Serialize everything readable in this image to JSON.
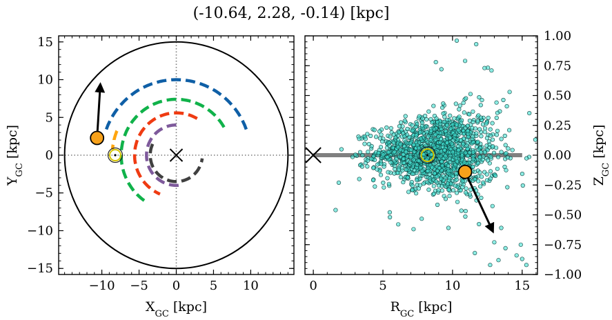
{
  "figure": {
    "title": "(-10.64, 2.28, -0.14) [kpc]"
  },
  "chart_data": [
    {
      "type": "line",
      "panel": "left",
      "xlabel": "X",
      "xlabel_sub": "GC",
      "xlabel_unit": " [kpc]",
      "ylabel": "Y",
      "ylabel_sub": "GC",
      "ylabel_unit": " [kpc]",
      "xlim": [
        -15.8,
        15.8
      ],
      "ylim": [
        -15.8,
        15.8
      ],
      "xticks": [
        -10,
        -5,
        0,
        5,
        10
      ],
      "xtick_labels": [
        "−10",
        "−5",
        "0",
        "5",
        "10"
      ],
      "yticks": [
        -15,
        -10,
        -5,
        0,
        5,
        10,
        15
      ],
      "ytick_labels": [
        "−15",
        "−10",
        "−5",
        "0",
        "5",
        "10",
        "15"
      ],
      "boundary_circle_radius": 15,
      "galactic_center": [
        0,
        0
      ],
      "sun_position": [
        -8.2,
        0
      ],
      "object_position": [
        -10.64,
        2.28
      ],
      "object_velocity_arrow_tip": [
        -10.2,
        9.4
      ],
      "spiral_arms": [
        {
          "color": "#0f5fa6",
          "radius": 10.0,
          "theta_start_deg": 20,
          "theta_end_deg": 160
        },
        {
          "color": "#10b24a",
          "radius": 7.4,
          "theta_start_deg": 30,
          "theta_end_deg": 238
        },
        {
          "color": "#ffa50f",
          "radius": 8.6,
          "theta_start_deg": 158,
          "theta_end_deg": 175
        },
        {
          "color": "#ef3b12",
          "radius": 5.6,
          "theta_start_deg": 60,
          "theta_end_deg": 247
        },
        {
          "color": "#7e5a9b",
          "radius": 4.0,
          "theta_start_deg": 90,
          "theta_end_deg": 279
        },
        {
          "color": "#404040",
          "radius": 3.5,
          "theta_start_deg": 155,
          "theta_end_deg": 353
        }
      ]
    },
    {
      "type": "scatter",
      "panel": "right",
      "xlabel": "R",
      "xlabel_sub": "GC",
      "xlabel_unit": " [kpc]",
      "ylabel": "Z",
      "ylabel_sub": "GC",
      "ylabel_unit": " [kpc]",
      "xlim": [
        -0.6,
        16.1
      ],
      "ylim": [
        -1.0,
        1.0
      ],
      "xticks": [
        0,
        5,
        10,
        15
      ],
      "xtick_labels": [
        "0",
        "5",
        "10",
        "15"
      ],
      "yticks": [
        -1.0,
        -0.75,
        -0.5,
        -0.25,
        0.0,
        0.25,
        0.5,
        0.75,
        1.0
      ],
      "ytick_labels": [
        "−1.00",
        "−0.75",
        "−0.50",
        "−0.25",
        "0.00",
        "0.25",
        "0.50",
        "0.75",
        "1.00"
      ],
      "disk_line": {
        "x": [
          0,
          15
        ],
        "y": 0
      },
      "galactic_center": [
        0,
        0
      ],
      "sun_position": [
        8.2,
        0
      ],
      "object_position": [
        10.9,
        -0.14
      ],
      "object_velocity_arrow_tip": [
        12.9,
        -0.64
      ],
      "point_color": "#40e0d0",
      "point_count": 1400,
      "distribution": {
        "mean_r": 8.9,
        "sd_r": 2.2,
        "mean_z": 0.02,
        "sd_z": 0.17
      },
      "outlier_points": [
        [
          1.6,
          -0.46
        ],
        [
          3.3,
          -0.2
        ],
        [
          5.5,
          -0.52
        ],
        [
          6.1,
          -0.58
        ],
        [
          7.2,
          -0.62
        ],
        [
          8.8,
          0.78
        ],
        [
          9.2,
          0.72
        ],
        [
          10.3,
          0.96
        ],
        [
          10.9,
          0.79
        ],
        [
          11.7,
          0.93
        ],
        [
          12.3,
          0.73
        ],
        [
          12.8,
          0.71
        ],
        [
          13.5,
          -0.61
        ],
        [
          14.6,
          -0.84
        ],
        [
          15.0,
          -0.87
        ],
        [
          15.3,
          -0.92
        ],
        [
          14.9,
          -0.75
        ],
        [
          13.8,
          -0.78
        ],
        [
          12.7,
          -0.92
        ],
        [
          13.3,
          -0.88
        ],
        [
          11.6,
          -0.82
        ],
        [
          14.1,
          0.53
        ],
        [
          13.9,
          0.41
        ],
        [
          13.0,
          -0.73
        ],
        [
          9.7,
          -0.61
        ]
      ]
    }
  ]
}
